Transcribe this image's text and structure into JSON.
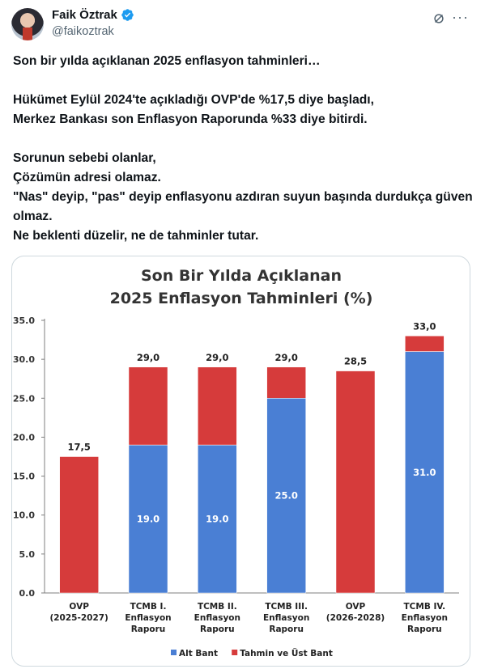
{
  "author": {
    "display_name": "Faik Öztrak",
    "handle": "@faikoztrak"
  },
  "icons": {
    "verified": "verified-badge-icon",
    "grok": "grok-icon",
    "more": "more-icon"
  },
  "tweet": {
    "lines": [
      "Son bir yılda açıklanan 2025 enflasyon tahminleri…",
      "",
      "Hükümet Eylül 2024'te açıkladığı OVP'de %17,5 diye başladı,",
      "Merkez Bankası son Enflasyon Raporunda %33 diye bitirdi.",
      "",
      "Sorunun sebebi olanlar,",
      "Çözümün adresi olamaz.",
      "\"Nas\" deyip, \"pas\" deyip enflasyonu azdıran suyun başında durdukça güven olmaz.",
      "Ne beklenti düzelir, ne de tahminler tutar."
    ]
  },
  "chart_data": {
    "type": "bar",
    "stacked": true,
    "title": [
      "Son Bir Yılda Açıklanan",
      "2025 Enflasyon Tahminleri (%)"
    ],
    "categories": [
      [
        "OVP",
        "(2025-2027)"
      ],
      [
        "TCMB I.",
        "Enflasyon",
        "Raporu"
      ],
      [
        "TCMB II.",
        "Enflasyon",
        "Raporu"
      ],
      [
        "TCMB III.",
        "Enflasyon",
        "Raporu"
      ],
      [
        "OVP",
        "(2026-2028)"
      ],
      [
        "TCMB IV.",
        "Enflasyon",
        "Raporu"
      ]
    ],
    "series": [
      {
        "name": "Alt Bant",
        "color": "#4a7fd4",
        "values": [
          0,
          19.0,
          19.0,
          25.0,
          0,
          31.0
        ],
        "labels": [
          "",
          "19.0",
          "19.0",
          "25.0",
          "",
          "31.0"
        ]
      },
      {
        "name": "Tahmin ve Üst Bant",
        "color": "#d63b3b",
        "values": [
          17.5,
          10.0,
          10.0,
          4.0,
          28.5,
          2.0
        ]
      }
    ],
    "total_labels": [
      "17,5",
      "29,0",
      "29,0",
      "29,0",
      "28,5",
      "33,0"
    ],
    "yticks": [
      "0.0",
      "5.0",
      "10.0",
      "15.0",
      "20.0",
      "25.0",
      "30.0",
      "35.0"
    ],
    "ylim": [
      0,
      35
    ],
    "legend_position": "bottom-center",
    "grid": false
  }
}
